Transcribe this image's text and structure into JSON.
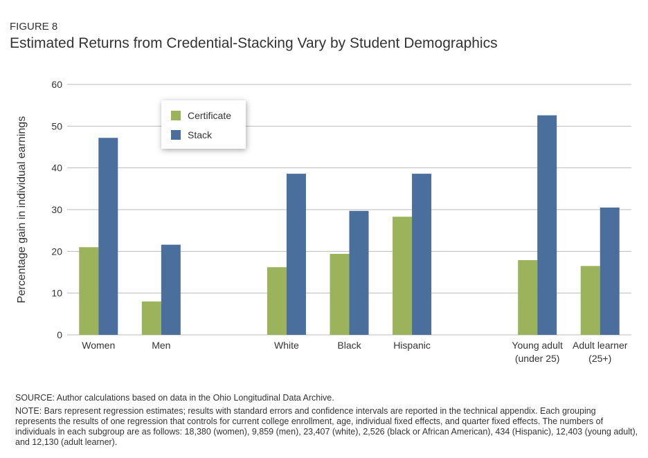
{
  "chart_data": {
    "type": "bar",
    "label": "FIGURE 8",
    "title": "Estimated Returns from Credential-Stacking Vary by Student Demographics",
    "y_label": "Percentage gain in individual earnings",
    "categories": [
      "Women",
      "Men",
      null,
      "White",
      "Black",
      "Hispanic",
      null,
      "Young adult (under 25)",
      "Adult learner (25+)"
    ],
    "series": [
      {
        "name": "Certificate",
        "color": "#9bb35a",
        "values": [
          21,
          8,
          null,
          16.2,
          19.4,
          28.3,
          null,
          17.9,
          16.5
        ]
      },
      {
        "name": "Stack",
        "color": "#4a6f9c",
        "values": [
          47.2,
          21.6,
          null,
          38.6,
          29.7,
          38.6,
          null,
          52.6,
          30.5
        ]
      }
    ],
    "ylim": [
      0,
      60
    ],
    "yticks": [
      0,
      10,
      20,
      30,
      40,
      50,
      60
    ],
    "grid": true,
    "legend": "top-left",
    "source": "SOURCE: Author calculations based on data in the Ohio Longitudinal Data Archive.",
    "note": "NOTE: Bars represent regression estimates; results with standard errors and confidence intervals are reported in the technical appendix. Each grouping represents the results of one regression that controls for current college enrollment, age, individual fixed effects, and quarter fixed effects. The numbers of individuals in each subgroup are as follows: 18,380 (women), 9,859 (men), 23,407 (white), 2,526 (black or African American), 434 (Hispanic), 12,403 (young adult), and 12,130 (adult learner)."
  }
}
